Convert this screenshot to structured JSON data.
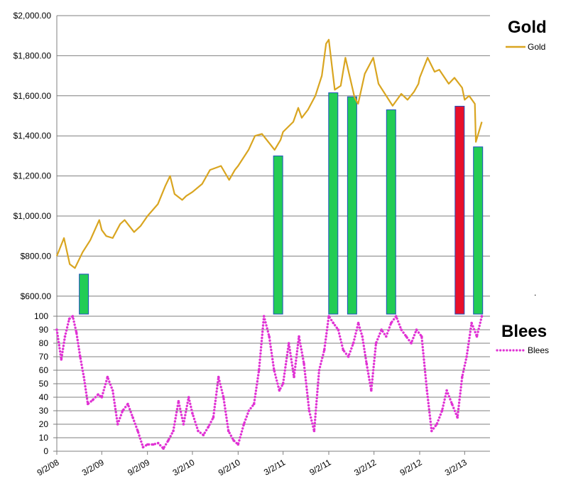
{
  "chart_data": [
    {
      "type": "line",
      "title": "Gold",
      "series": [
        {
          "name": "Gold",
          "color": "#d9a520",
          "x": [
            "9/2/08",
            "10/1/08",
            "10/24/08",
            "11/14/08",
            "12/15/08",
            "1/15/09",
            "2/20/09",
            "3/2/09",
            "3/20/09",
            "4/15/09",
            "5/15/09",
            "6/2/09",
            "7/10/09",
            "8/5/09",
            "9/2/09",
            "10/14/09",
            "11/13/09",
            "12/2/09",
            "12/20/09",
            "1/20/10",
            "2/5/10",
            "3/2/10",
            "4/10/10",
            "5/12/10",
            "6/25/10",
            "7/28/10",
            "8/20/10",
            "9/2/10",
            "10/14/10",
            "11/9/10",
            "12/7/10",
            "1/27/11",
            "2/20/11",
            "3/2/11",
            "4/12/11",
            "5/2/11",
            "5/16/11",
            "6/10/11",
            "7/10/11",
            "8/5/11",
            "8/22/11",
            "9/2/11",
            "9/26/11",
            "10/20/11",
            "11/8/11",
            "12/15/11",
            "12/29/11",
            "1/25/12",
            "2/28/12",
            "3/20/12",
            "5/16/12",
            "6/20/12",
            "7/15/12",
            "8/10/12",
            "8/28/12",
            "9/2/12",
            "10/4/12",
            "11/1/12",
            "11/20/12",
            "12/28/12",
            "1/20/13",
            "2/20/13",
            "3/2/13",
            "3/20/13",
            "4/12/13",
            "4/16/13",
            "5/10/13"
          ],
          "values": [
            800,
            890,
            760,
            740,
            820,
            880,
            980,
            930,
            900,
            890,
            960,
            980,
            920,
            950,
            1000,
            1060,
            1150,
            1200,
            1110,
            1080,
            1100,
            1120,
            1160,
            1230,
            1250,
            1180,
            1230,
            1250,
            1330,
            1400,
            1410,
            1330,
            1380,
            1420,
            1470,
            1540,
            1490,
            1530,
            1600,
            1700,
            1860,
            1880,
            1630,
            1650,
            1790,
            1590,
            1560,
            1710,
            1790,
            1660,
            1550,
            1610,
            1580,
            1620,
            1660,
            1690,
            1790,
            1720,
            1730,
            1660,
            1690,
            1640,
            1580,
            1600,
            1560,
            1370,
            1470
          ]
        }
      ],
      "ylim": [
        500,
        2000
      ],
      "yticks": [
        "$600.00",
        "$800.00",
        "$1,000.00",
        "$1,200.00",
        "$1,400.00",
        "$1,600.00",
        "$1,800.00",
        "$2,000.00"
      ],
      "grid": true,
      "legend": "right"
    },
    {
      "type": "bar",
      "signal_bars": [
        {
          "x": "12/20/08",
          "value": 710,
          "color": "#22cc55"
        },
        {
          "x": "2/10/11",
          "value": 1300,
          "color": "#22cc55"
        },
        {
          "x": "9/20/11",
          "value": 1615,
          "color": "#22cc55"
        },
        {
          "x": "12/5/11",
          "value": 1595,
          "color": "#22cc55"
        },
        {
          "x": "5/10/12",
          "value": 1530,
          "color": "#22cc55"
        },
        {
          "x": "2/10/13",
          "value": 1548,
          "color": "#e8102a"
        },
        {
          "x": "4/25/13",
          "value": 1345,
          "color": "#22cc55"
        }
      ],
      "note_dot": "."
    },
    {
      "type": "scatter",
      "title": "Blees",
      "series": [
        {
          "name": "Blees",
          "color": "#e032d4",
          "x": [
            "9/2/08",
            "9/20/08",
            "10/5/08",
            "10/22/08",
            "11/5/08",
            "11/20/08",
            "12/5/08",
            "12/20/08",
            "1/5/09",
            "1/25/09",
            "2/15/09",
            "3/2/09",
            "3/25/09",
            "4/15/09",
            "5/5/09",
            "5/25/09",
            "6/15/09",
            "7/5/09",
            "7/25/09",
            "8/15/09",
            "9/2/09",
            "9/25/09",
            "10/15/09",
            "11/5/09",
            "11/25/09",
            "12/15/09",
            "1/5/10",
            "1/25/10",
            "2/15/10",
            "3/2/10",
            "3/25/10",
            "4/15/10",
            "5/5/10",
            "5/25/10",
            "6/15/10",
            "7/5/10",
            "7/25/10",
            "8/15/10",
            "9/2/10",
            "9/25/10",
            "10/15/10",
            "11/5/10",
            "11/25/10",
            "12/15/10",
            "1/5/11",
            "1/25/11",
            "2/15/11",
            "3/2/11",
            "3/25/11",
            "4/15/11",
            "5/5/11",
            "5/25/11",
            "6/15/11",
            "7/5/11",
            "7/25/11",
            "8/15/11",
            "9/2/11",
            "9/20/11",
            "10/10/11",
            "10/30/11",
            "11/20/11",
            "12/10/11",
            "12/30/11",
            "1/15/12",
            "2/1/12",
            "2/20/12",
            "3/10/12",
            "4/1/12",
            "4/20/12",
            "5/10/12",
            "5/30/12",
            "6/20/12",
            "7/10/12",
            "7/30/12",
            "8/20/12",
            "9/10/12",
            "10/1/12",
            "10/20/12",
            "11/10/12",
            "12/1/12",
            "12/20/12",
            "1/10/13",
            "2/1/13",
            "2/20/13",
            "3/10/13",
            "3/30/13",
            "4/20/13",
            "5/10/13"
          ],
          "values": [
            90,
            68,
            85,
            98,
            100,
            88,
            70,
            55,
            35,
            38,
            42,
            40,
            55,
            45,
            20,
            30,
            35,
            25,
            15,
            3,
            5,
            5,
            6,
            2,
            8,
            15,
            37,
            20,
            40,
            28,
            15,
            12,
            18,
            25,
            55,
            40,
            15,
            8,
            5,
            20,
            30,
            35,
            60,
            100,
            85,
            60,
            45,
            50,
            80,
            55,
            85,
            65,
            30,
            15,
            60,
            75,
            100,
            95,
            90,
            75,
            70,
            80,
            95,
            85,
            65,
            45,
            80,
            90,
            85,
            95,
            100,
            90,
            85,
            80,
            90,
            85,
            45,
            15,
            20,
            30,
            45,
            35,
            25,
            55,
            70,
            95,
            85,
            100
          ]
        }
      ],
      "ylim": [
        0,
        100
      ],
      "yticks": [
        "0",
        "10",
        "20",
        "30",
        "40",
        "50",
        "60",
        "70",
        "80",
        "90",
        "100"
      ],
      "xticks": [
        "9/2/08",
        "3/2/09",
        "9/2/09",
        "3/2/10",
        "9/2/10",
        "3/2/11",
        "9/2/11",
        "3/2/12",
        "9/2/12",
        "3/2/13"
      ],
      "grid": true,
      "legend": "right"
    }
  ]
}
